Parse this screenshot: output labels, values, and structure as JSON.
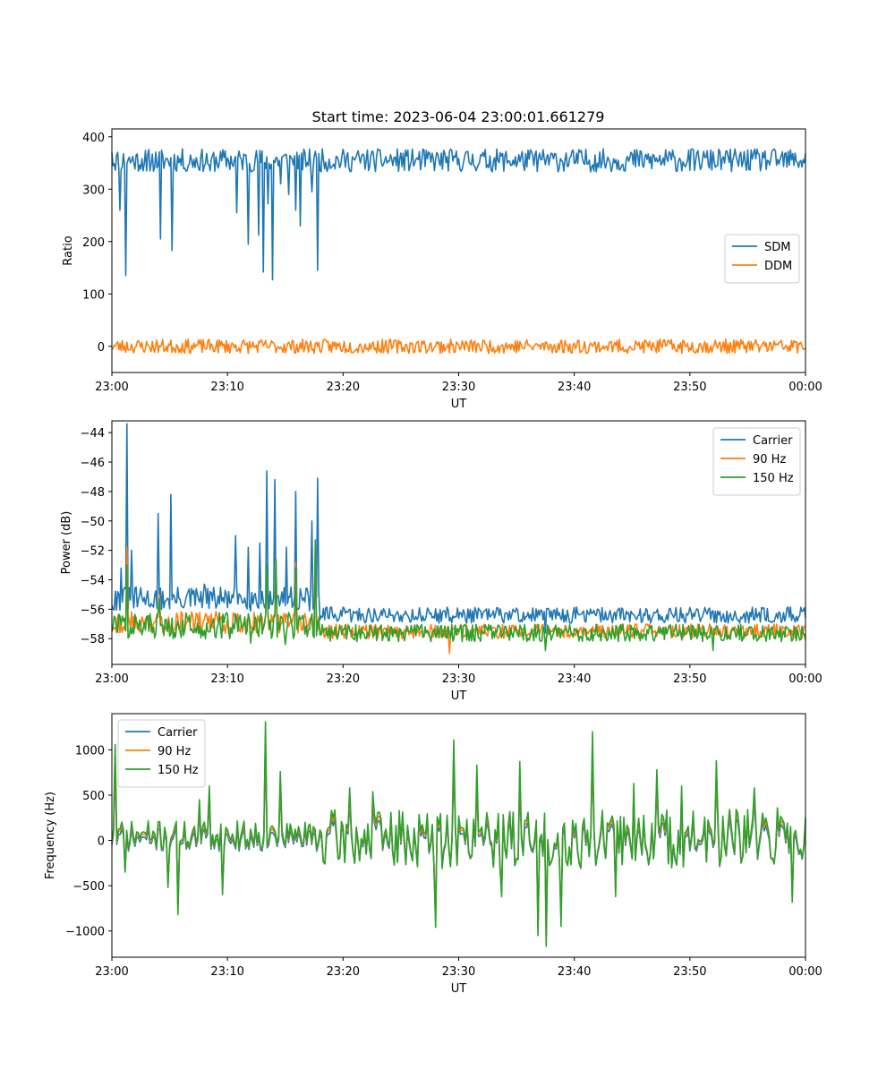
{
  "figure": {
    "title": "Start time: 2023-06-04 23:00:01.661279"
  },
  "chart_data": [
    {
      "type": "line",
      "title": "Start time: 2023-06-04 23:00:01.661279",
      "xlabel": "UT",
      "ylabel": "Ratio",
      "xlim": [
        "23:00",
        "00:00"
      ],
      "ylim": [
        -50,
        415
      ],
      "x_ticks": [
        "23:00",
        "23:10",
        "23:20",
        "23:30",
        "23:40",
        "23:50",
        "00:00"
      ],
      "y_ticks": [
        0,
        100,
        200,
        300,
        400
      ],
      "grid": false,
      "legend_position": "center-right",
      "series": [
        {
          "name": "SDM",
          "color": "#1f77b4",
          "base": 355,
          "noise": 13,
          "seed": 11,
          "dips": [
            [
              0.7,
              260
            ],
            [
              1.2,
              135
            ],
            [
              3.0,
              335
            ],
            [
              4.2,
              205
            ],
            [
              5.2,
              183
            ],
            [
              6.5,
              335
            ],
            [
              8.5,
              335
            ],
            [
              10.8,
              255
            ],
            [
              11.8,
              195
            ],
            [
              12.7,
              212
            ],
            [
              13.1,
              142
            ],
            [
              13.5,
              272
            ],
            [
              13.9,
              127
            ],
            [
              14.6,
              310
            ],
            [
              15.3,
              290
            ],
            [
              15.9,
              260
            ],
            [
              16.3,
              230
            ],
            [
              17.3,
              295
            ],
            [
              17.8,
              145
            ]
          ]
        },
        {
          "name": "DDM",
          "color": "#ff7f0e",
          "base": 0,
          "noise": 8,
          "seed": 23,
          "dips": []
        }
      ]
    },
    {
      "type": "line",
      "xlabel": "UT",
      "ylabel": "Power (dB)",
      "xlim": [
        "23:00",
        "00:00"
      ],
      "ylim": [
        -59.75,
        -43.2
      ],
      "x_ticks": [
        "23:00",
        "23:10",
        "23:20",
        "23:30",
        "23:40",
        "23:50",
        "00:00"
      ],
      "y_ticks": [
        -44,
        -46,
        -48,
        -50,
        -52,
        -54,
        -56,
        -58
      ],
      "grid": false,
      "legend_position": "top-right",
      "series": [
        {
          "name": "Carrier",
          "color": "#1f77b4",
          "base_early": -55.3,
          "base_late": -56.4,
          "noise": 0.55,
          "seed": 31,
          "peaks": [
            [
              0.8,
              -53.2
            ],
            [
              1.3,
              -43.4
            ],
            [
              1.7,
              -52.0
            ],
            [
              4.0,
              -49.5
            ],
            [
              5.1,
              -48.2
            ],
            [
              8.0,
              -54.3
            ],
            [
              10.7,
              -51.0
            ],
            [
              11.8,
              -51.8
            ],
            [
              12.8,
              -51.5
            ],
            [
              13.4,
              -46.6
            ],
            [
              14.1,
              -47.2
            ],
            [
              15.1,
              -51.8
            ],
            [
              15.9,
              -48.0
            ],
            [
              16.5,
              -55.4
            ],
            [
              17.3,
              -50.0
            ],
            [
              17.8,
              -47.1
            ],
            [
              37.5,
              -57.6
            ],
            [
              39.0,
              -56.0
            ]
          ]
        },
        {
          "name": "90 Hz",
          "color": "#ff7f0e",
          "base_early": -56.9,
          "base_late": -57.5,
          "noise": 0.5,
          "seed": 43,
          "peaks": [
            [
              1.3,
              -51.8
            ],
            [
              4.1,
              -55.0
            ],
            [
              13.4,
              -53.5
            ],
            [
              14.2,
              -52.6
            ],
            [
              15.9,
              -52.8
            ],
            [
              17.6,
              -51.5
            ],
            [
              29.2,
              -59.0
            ],
            [
              37.5,
              -58.6
            ]
          ]
        },
        {
          "name": "150 Hz",
          "color": "#2ca02c",
          "base_early": -57.1,
          "base_late": -57.6,
          "noise": 0.6,
          "seed": 57,
          "peaks": [
            [
              1.3,
              -53.0
            ],
            [
              4.1,
              -55.3
            ],
            [
              12.0,
              -58.3
            ],
            [
              13.4,
              -53.0
            ],
            [
              14.2,
              -52.6
            ],
            [
              15.0,
              -58.4
            ],
            [
              15.9,
              -53.2
            ],
            [
              17.6,
              -51.3
            ],
            [
              37.5,
              -58.8
            ],
            [
              52.0,
              -58.8
            ]
          ]
        }
      ]
    },
    {
      "type": "line",
      "xlabel": "UT",
      "ylabel": "Frequency (Hz)",
      "xlim": [
        "23:00",
        "00:00"
      ],
      "ylim": [
        -1290,
        1400
      ],
      "x_ticks": [
        "23:00",
        "23:10",
        "23:20",
        "23:30",
        "23:40",
        "23:50",
        "00:00"
      ],
      "y_ticks": [
        1000,
        500,
        0,
        -500,
        -1000
      ],
      "grid": false,
      "legend_position": "top-left",
      "series": [
        {
          "name": "Carrier",
          "color": "#1f77b4",
          "scale": 0.82,
          "offset": -40
        },
        {
          "name": "90 Hz",
          "color": "#ff7f0e",
          "scale": 0.9,
          "offset": -15
        },
        {
          "name": "150 Hz",
          "color": "#2ca02c",
          "scale": 1.0,
          "offset": 0
        }
      ],
      "seed": 71,
      "spikes": [
        [
          0.3,
          1060
        ],
        [
          1.1,
          -350
        ],
        [
          4.8,
          -520
        ],
        [
          5.7,
          -820
        ],
        [
          7.5,
          450
        ],
        [
          8.4,
          600
        ],
        [
          9.6,
          -600
        ],
        [
          13.3,
          1310
        ],
        [
          14.6,
          760
        ],
        [
          20.5,
          580
        ],
        [
          22.5,
          540
        ],
        [
          28.0,
          -960
        ],
        [
          29.5,
          1110
        ],
        [
          31.6,
          830
        ],
        [
          33.7,
          -620
        ],
        [
          35.3,
          870
        ],
        [
          36.8,
          -1050
        ],
        [
          37.6,
          -1170
        ],
        [
          38.8,
          -950
        ],
        [
          41.6,
          1200
        ],
        [
          43.5,
          -620
        ],
        [
          45.2,
          630
        ],
        [
          47.2,
          780
        ],
        [
          49.3,
          600
        ],
        [
          52.3,
          880
        ],
        [
          55.6,
          580
        ],
        [
          57.5,
          360
        ],
        [
          58.9,
          -680
        ]
      ]
    }
  ]
}
